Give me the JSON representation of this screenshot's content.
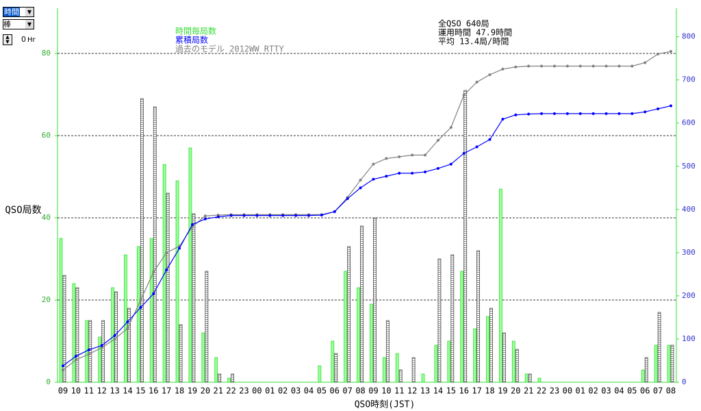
{
  "ui": {
    "period_select": "時間",
    "display_select": "棒",
    "spinner_value": "0",
    "spinner_unit": "Hr"
  },
  "chart_data": {
    "type": "bar",
    "y_label": "QSO局数",
    "x_label": "QSO時刻(JST)",
    "annotations": [
      "全QSO 640局",
      "運用時間 47.9時間",
      "平均 13.4局/時間"
    ],
    "categories": [
      "09",
      "10",
      "11",
      "12",
      "13",
      "14",
      "15",
      "16",
      "17",
      "18",
      "19",
      "20",
      "21",
      "22",
      "23",
      "00",
      "01",
      "02",
      "03",
      "04",
      "05",
      "06",
      "07",
      "08",
      "09",
      "10",
      "11",
      "12",
      "13",
      "14",
      "15",
      "16",
      "17",
      "18",
      "19",
      "20",
      "21",
      "22",
      "23",
      "00",
      "01",
      "02",
      "03",
      "04",
      "05",
      "06",
      "07",
      "08"
    ],
    "series": [
      {
        "name": "時間毎局数",
        "color": "#33dd33",
        "type": "bar",
        "values": [
          35,
          24,
          15,
          11,
          23,
          31,
          33,
          35,
          53,
          49,
          57,
          12,
          6,
          1,
          0,
          0,
          0,
          0,
          0,
          0,
          4,
          10,
          27,
          23,
          19,
          6,
          7,
          0,
          2,
          9,
          10,
          27,
          13,
          16,
          47,
          10,
          2,
          1,
          0,
          0,
          0,
          0,
          0,
          0,
          0,
          3,
          9,
          9
        ]
      },
      {
        "name": "累積局数",
        "color": "#0000ff",
        "type": "line",
        "axis": "y2",
        "values": [
          38,
          60,
          75,
          85,
          108,
          140,
          173,
          205,
          260,
          310,
          365,
          378,
          383,
          386,
          386,
          386,
          386,
          386,
          386,
          386,
          387,
          395,
          425,
          450,
          470,
          477,
          484,
          484,
          487,
          495,
          505,
          530,
          545,
          562,
          609,
          619,
          621,
          622,
          622,
          622,
          622,
          622,
          622,
          622,
          622,
          626,
          633,
          640
        ]
      },
      {
        "name": "過去のモデル 2012WW RTTY",
        "color": "#808080",
        "type": "bar",
        "values": [
          26,
          23,
          15,
          15,
          22,
          18,
          69,
          67,
          46,
          14,
          41,
          27,
          2,
          2,
          0,
          0,
          0,
          0,
          0,
          0,
          0,
          7,
          33,
          38,
          40,
          15,
          3,
          6,
          0,
          30,
          31,
          71,
          32,
          18,
          12,
          8,
          2,
          0,
          0,
          0,
          0,
          0,
          0,
          0,
          0,
          6,
          17,
          9
        ]
      },
      {
        "color": "#808080",
        "type": "line",
        "axis": "y2",
        "values": [
          28,
          52,
          65,
          80,
          100,
          125,
          190,
          255,
          300,
          315,
          360,
          385,
          387,
          388,
          388,
          388,
          388,
          388,
          388,
          388,
          388,
          395,
          428,
          468,
          505,
          518,
          522,
          526,
          526,
          560,
          590,
          665,
          695,
          712,
          725,
          730,
          732,
          732,
          732,
          732,
          732,
          732,
          732,
          732,
          732,
          740,
          760,
          766
        ]
      }
    ],
    "ylim": [
      0,
      91
    ],
    "yticks": [
      0,
      20,
      40,
      60,
      80
    ],
    "y2lim": [
      0,
      866
    ],
    "y2ticks": [
      0,
      100,
      200,
      300,
      400,
      500,
      600,
      700,
      800
    ],
    "grid": true
  }
}
